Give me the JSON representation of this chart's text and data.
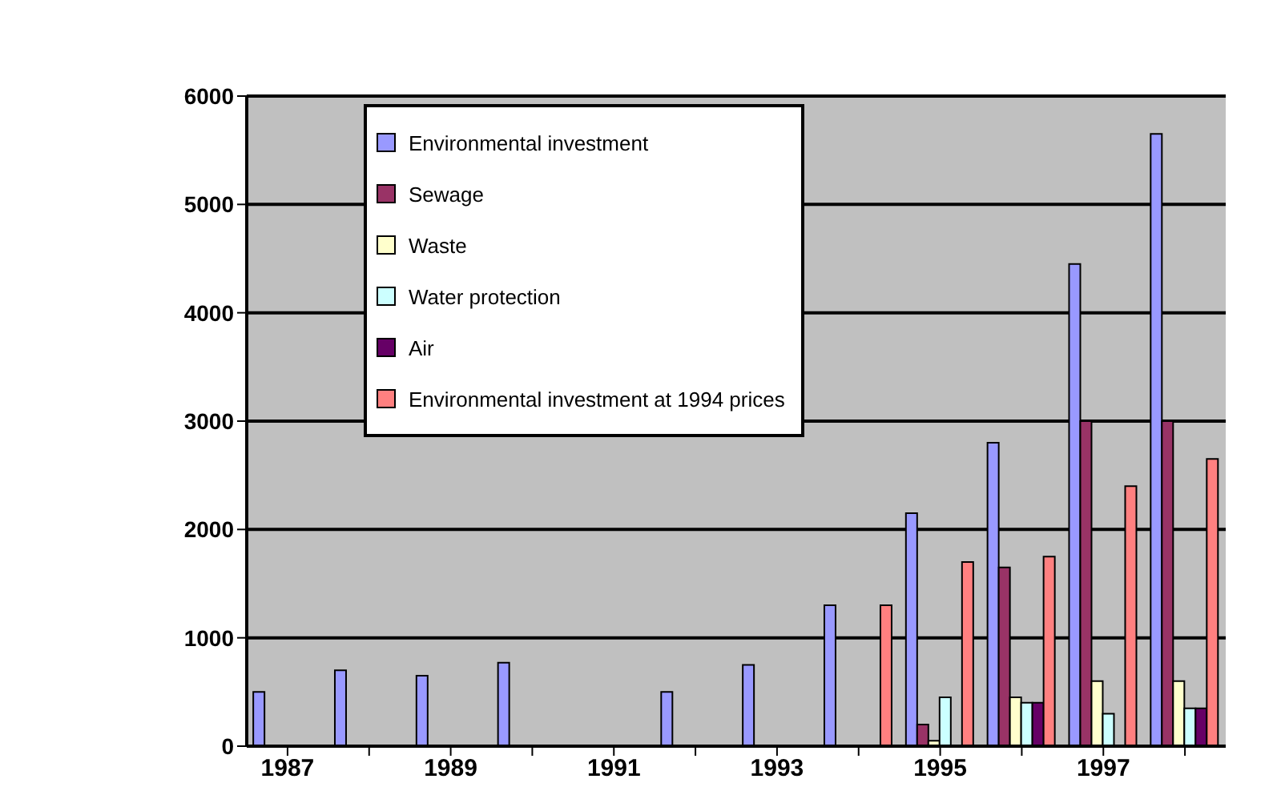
{
  "chart_data": {
    "type": "bar",
    "categories": [
      "1987",
      null,
      "1989",
      null,
      "1991",
      null,
      "1993",
      null,
      "1995",
      null,
      "1997",
      null
    ],
    "series": [
      {
        "name": "Environmental investment",
        "color": "#9999ff",
        "values": [
          500,
          700,
          650,
          770,
          null,
          500,
          750,
          1300,
          2150,
          2800,
          4450,
          5650
        ]
      },
      {
        "name": "Sewage",
        "color": "#993366",
        "values": [
          null,
          null,
          null,
          null,
          null,
          null,
          null,
          null,
          200,
          1650,
          3000,
          3000
        ]
      },
      {
        "name": "Waste",
        "color": "#ffffcc",
        "values": [
          null,
          null,
          null,
          null,
          null,
          null,
          null,
          null,
          50,
          450,
          600,
          600
        ]
      },
      {
        "name": "Water protection",
        "color": "#ccffff",
        "values": [
          null,
          null,
          null,
          null,
          null,
          null,
          null,
          null,
          450,
          400,
          300,
          350
        ]
      },
      {
        "name": "Air",
        "color": "#660066",
        "values": [
          null,
          null,
          null,
          null,
          null,
          null,
          null,
          null,
          null,
          400,
          null,
          350
        ]
      },
      {
        "name": "Environmental investment at 1994 prices",
        "color": "#ff8080",
        "values": [
          null,
          null,
          null,
          null,
          null,
          null,
          null,
          1300,
          1700,
          1750,
          2400,
          2650
        ]
      }
    ],
    "ylim": [
      0,
      6000
    ],
    "yticks": [
      0,
      1000,
      2000,
      3000,
      4000,
      5000,
      6000
    ],
    "grid": "y",
    "legend": "top left"
  }
}
